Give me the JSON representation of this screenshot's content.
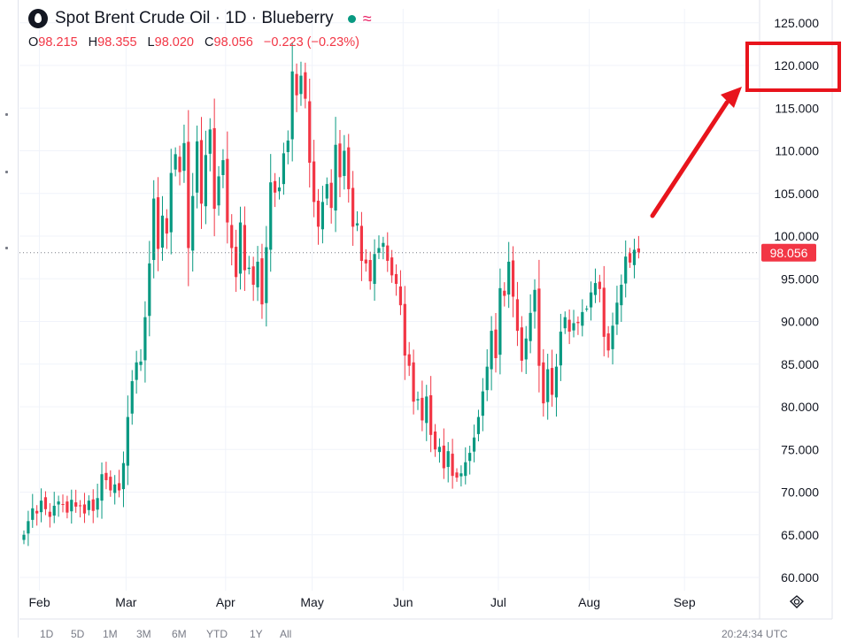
{
  "header": {
    "title": "Spot Brent Crude Oil · 1D · Blueberry",
    "status_icon": "market-open-dot",
    "approx_icon": "≈",
    "ohlc": {
      "open_label": "O",
      "open": "98.215",
      "high_label": "H",
      "high": "98.355",
      "low_label": "L",
      "low": "98.020",
      "close_label": "C",
      "close": "98.056",
      "change": "−0.223 (−0.23%)"
    }
  },
  "colors": {
    "up": "#089981",
    "down": "#f23645",
    "grid": "#f0f3fa",
    "axis_text": "#131722",
    "price_label_bg": "#f23645",
    "annotation": "#e8141c"
  },
  "chart_data": {
    "type": "candlestick",
    "title": "Spot Brent Crude Oil · 1D · Blueberry",
    "x_tick_labels": [
      "Feb",
      "Mar",
      "Apr",
      "May",
      "Jun",
      "Jul",
      "Aug",
      "Sep"
    ],
    "y_tick_labels": [
      "60.000",
      "65.000",
      "70.000",
      "75.000",
      "80.000",
      "85.000",
      "90.000",
      "95.000",
      "100.000",
      "105.000",
      "110.000",
      "115.000",
      "120.000",
      "125.000"
    ],
    "ylim": [
      60,
      125
    ],
    "y_ticks": [
      60,
      65,
      70,
      75,
      80,
      85,
      90,
      95,
      100,
      105,
      110,
      115,
      120,
      125
    ],
    "grid": true,
    "last_price": 98.056,
    "last_price_label": "98.056",
    "highlighted_tick": "120.000",
    "annotation": "red arrow pointing to the 120.000 price level",
    "month_starts": [
      {
        "label": "Feb",
        "index": 4
      },
      {
        "label": "Mar",
        "index": 24
      },
      {
        "label": "Apr",
        "index": 47
      },
      {
        "label": "May",
        "index": 67
      },
      {
        "label": "Jun",
        "index": 88
      },
      {
        "label": "Jul",
        "index": 110
      },
      {
        "label": "Aug",
        "index": 131
      },
      {
        "label": "Sep",
        "index": 153
      }
    ],
    "closes": [
      65.0,
      66.6,
      68.1,
      67.5,
      69.0,
      68.0,
      67.1,
      68.4,
      68.9,
      68.5,
      67.6,
      69.1,
      68.3,
      68.4,
      67.5,
      69.0,
      67.8,
      69.3,
      72.1,
      71.4,
      70.2,
      70.9,
      70.2,
      73.4,
      78.8,
      83.0,
      85.2,
      85.3,
      90.5,
      96.8,
      104.4,
      98.5,
      102.4,
      100.3,
      107.4,
      109.6,
      107.5,
      110.9,
      98.6,
      104.7,
      111.1,
      103.8,
      109.5,
      112.5,
      103.2,
      107.0,
      108.9,
      101.6,
      98.6,
      95.2,
      101.6,
      96.0,
      96.3,
      94.3,
      97.0,
      92.0,
      98.7,
      106.3,
      105.1,
      105.7,
      109.7,
      111.2,
      119.3,
      116.5,
      118.8,
      116.1,
      108.6,
      104.0,
      101.1,
      104.0,
      106.1,
      103.3,
      110.7,
      106.9,
      110.0,
      105.5,
      101.1,
      101.5,
      97.1,
      96.8,
      94.7,
      97.9,
      98.6,
      99.2,
      97.1,
      95.4,
      94.4,
      91.9,
      86.0,
      84.8,
      80.6,
      80.9,
      78.4,
      81.2,
      76.7,
      75.0,
      75.3,
      72.8,
      74.8,
      71.9,
      71.7,
      72.2,
      73.5,
      74.6,
      76.4,
      78.8,
      81.8,
      84.7,
      88.9,
      85.7,
      93.9,
      93.0,
      97.0,
      92.9,
      88.9,
      85.4,
      88.0,
      91.0,
      93.7,
      84.8,
      80.4,
      84.4,
      81.4,
      84.7,
      88.8,
      90.5,
      88.8,
      89.8,
      89.8,
      91.1,
      91.5,
      93.4,
      94.5,
      93.8,
      88.2,
      86.6,
      89.5,
      92.2,
      94.3,
      97.6,
      96.9,
      98.4,
      98.1
    ]
  },
  "bottom_bar": {
    "ranges": [
      "1D",
      "5D",
      "1M",
      "3M",
      "6M",
      "YTD",
      "1Y",
      "All"
    ],
    "time": "20:24:34 UTC"
  }
}
